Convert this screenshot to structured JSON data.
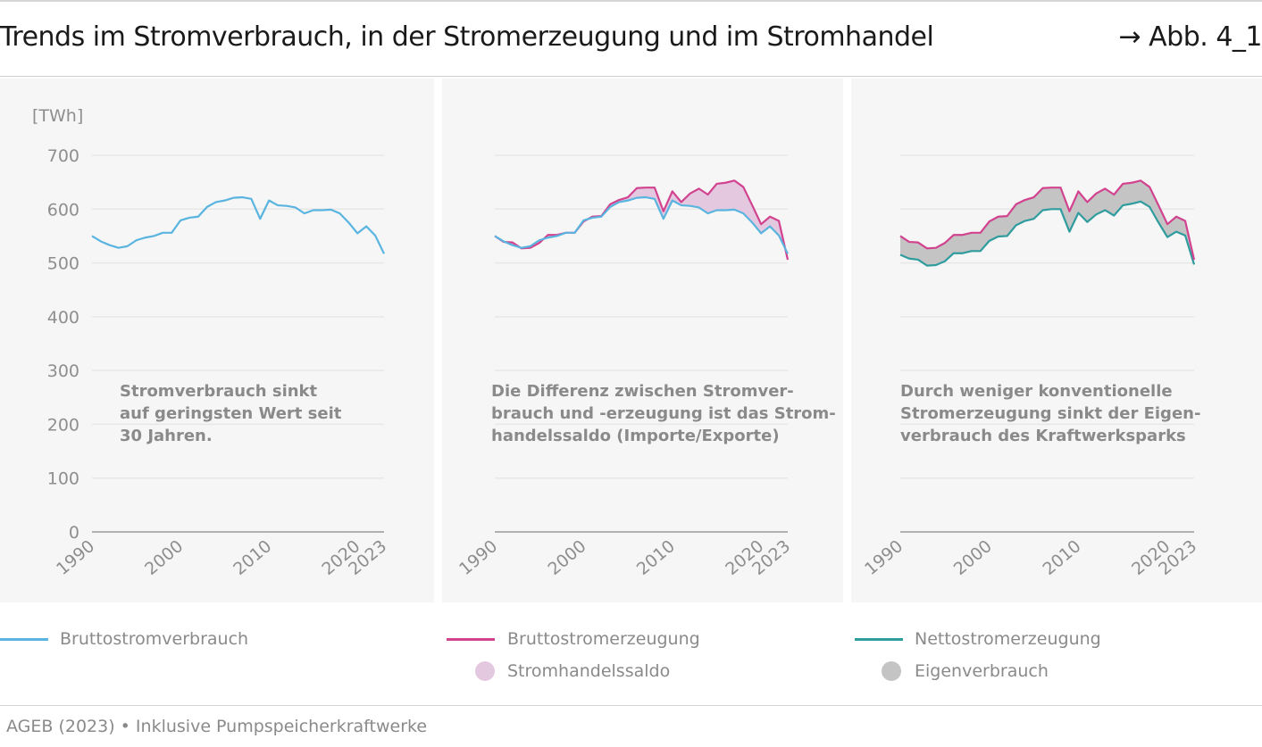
{
  "header": {
    "title": "Trends im Stromverbrauch, in der Stromerzeugung und im Stromhandel",
    "figure_ref": "→ Abb. 4_1"
  },
  "colors": {
    "verbrauch": "#5ab4e0",
    "erzeugung": "#d2438f",
    "netto": "#2f9c9e",
    "saldo_fill": "#e3c8e0",
    "eigen_fill": "#c4c4c4",
    "panel_bg": "#f6f6f6",
    "grid": "#e7e7e7",
    "axis_text": "#8e8e8e"
  },
  "legend": {
    "verbrauch": "Bruttostromverbrauch",
    "erzeugung": "Bruttostromerzeugung",
    "saldo": "Stromhandelssaldo",
    "netto": "Nettostromerzeugung",
    "eigen": "Eigenverbrauch"
  },
  "footnote": "AGEB (2023) • Inklusive Pumpspeicherkraftwerke",
  "chart_data": [
    {
      "type": "line",
      "ylabel": "[TWh]",
      "ylim": [
        0,
        700
      ],
      "yticks": [
        0,
        100,
        200,
        300,
        400,
        500,
        600,
        700
      ],
      "xlim": [
        1990,
        2023
      ],
      "xticks": [
        "1990",
        "2000",
        "2010",
        "2020",
        "2023"
      ],
      "grid": true,
      "annotation": [
        "Stromverbrauch sinkt",
        "auf geringsten Wert seit",
        "30 Jahren."
      ],
      "x": [
        1990,
        1991,
        1992,
        1993,
        1994,
        1995,
        1996,
        1997,
        1998,
        1999,
        2000,
        2001,
        2002,
        2003,
        2004,
        2005,
        2006,
        2007,
        2008,
        2009,
        2010,
        2011,
        2012,
        2013,
        2014,
        2015,
        2016,
        2017,
        2018,
        2019,
        2020,
        2021,
        2022,
        2023
      ],
      "series": [
        {
          "name": "Bruttostromverbrauch",
          "values": [
            550,
            540,
            533,
            528,
            531,
            542,
            547,
            550,
            556,
            556,
            579,
            584,
            586,
            604,
            613,
            616,
            621,
            622,
            619,
            582,
            616,
            607,
            606,
            603,
            592,
            598,
            598,
            599,
            592,
            575,
            555,
            568,
            551,
            517
          ]
        }
      ]
    },
    {
      "type": "area",
      "ylim": [
        0,
        700
      ],
      "xlim": [
        1990,
        2023
      ],
      "xticks": [
        "1990",
        "2000",
        "2010",
        "2020",
        "2023"
      ],
      "grid": true,
      "annotation": [
        "Die Differenz zwischen Stromver-",
        "brauch und -erzeugung ist das Strom-",
        "handelssaldo (Importe/Exporte)"
      ],
      "x": [
        1990,
        1991,
        1992,
        1993,
        1994,
        1995,
        1996,
        1997,
        1998,
        1999,
        2000,
        2001,
        2002,
        2003,
        2004,
        2005,
        2006,
        2007,
        2008,
        2009,
        2010,
        2011,
        2012,
        2013,
        2014,
        2015,
        2016,
        2017,
        2018,
        2019,
        2020,
        2021,
        2022,
        2023
      ],
      "series": [
        {
          "name": "Bruttostromverbrauch",
          "values": [
            550,
            540,
            533,
            528,
            531,
            542,
            547,
            550,
            556,
            556,
            579,
            584,
            586,
            604,
            613,
            616,
            621,
            622,
            619,
            582,
            616,
            607,
            606,
            603,
            592,
            598,
            598,
            599,
            592,
            575,
            555,
            568,
            551,
            517
          ]
        },
        {
          "name": "Bruttostromerzeugung",
          "values": [
            550,
            539,
            538,
            527,
            528,
            537,
            552,
            552,
            556,
            556,
            577,
            586,
            587,
            609,
            617,
            622,
            639,
            640,
            640,
            596,
            633,
            613,
            629,
            638,
            627,
            647,
            649,
            653,
            641,
            607,
            572,
            586,
            578,
            506
          ]
        }
      ]
    },
    {
      "type": "area",
      "ylim": [
        0,
        700
      ],
      "xlim": [
        1990,
        2023
      ],
      "xticks": [
        "1990",
        "2000",
        "2010",
        "2020",
        "2023"
      ],
      "grid": true,
      "annotation": [
        "Durch weniger konventionelle",
        "Stromerzeugung sinkt der Eigen-",
        "verbrauch des Kraftwerksparks"
      ],
      "x": [
        1990,
        1991,
        1992,
        1993,
        1994,
        1995,
        1996,
        1997,
        1998,
        1999,
        2000,
        2001,
        2002,
        2003,
        2004,
        2005,
        2006,
        2007,
        2008,
        2009,
        2010,
        2011,
        2012,
        2013,
        2014,
        2015,
        2016,
        2017,
        2018,
        2019,
        2020,
        2021,
        2022,
        2023
      ],
      "series": [
        {
          "name": "Bruttostromerzeugung",
          "values": [
            550,
            539,
            538,
            527,
            528,
            537,
            552,
            552,
            556,
            556,
            577,
            586,
            587,
            609,
            617,
            622,
            639,
            640,
            640,
            596,
            633,
            613,
            629,
            638,
            627,
            647,
            649,
            653,
            641,
            607,
            572,
            586,
            578,
            506
          ]
        },
        {
          "name": "Nettostromerzeugung",
          "values": [
            515,
            508,
            506,
            495,
            496,
            503,
            518,
            518,
            522,
            522,
            541,
            549,
            550,
            570,
            578,
            582,
            598,
            600,
            600,
            558,
            593,
            576,
            590,
            598,
            588,
            607,
            610,
            614,
            604,
            575,
            548,
            558,
            551,
            497
          ]
        }
      ]
    }
  ]
}
